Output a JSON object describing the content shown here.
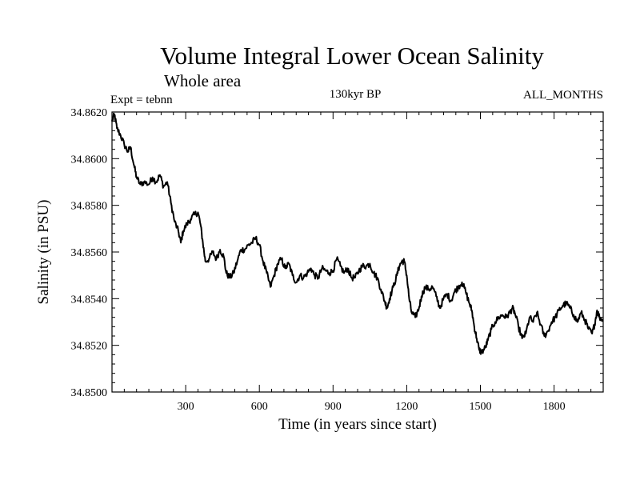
{
  "chart_data": {
    "type": "line",
    "title": "Volume Integral Lower Ocean Salinity",
    "subtitle": "Whole area",
    "expt_label": "Expt = tebnn",
    "period_label": "130kyr BP",
    "months_label": "ALL_MONTHS",
    "xlabel": "Time (in years since start)",
    "ylabel": "Salinity (in PSU)",
    "xlim": [
      0,
      2000
    ],
    "ylim": [
      34.85,
      34.862
    ],
    "x_ticks": [
      300,
      600,
      900,
      1200,
      1500,
      1800
    ],
    "x_tick_labels": [
      "300",
      "600",
      "900",
      "1200",
      "1500",
      "1800"
    ],
    "y_ticks": [
      34.85,
      34.852,
      34.854,
      34.856,
      34.858,
      34.86,
      34.862
    ],
    "y_tick_labels": [
      "34.8500",
      "34.8520",
      "34.8540",
      "34.8560",
      "34.8580",
      "34.8600",
      "34.8620"
    ],
    "series": [
      {
        "name": "salinity",
        "color": "#000000",
        "points": [
          [
            0,
            34.8616
          ],
          [
            10,
            34.8619
          ],
          [
            20,
            34.8613
          ],
          [
            35,
            34.861
          ],
          [
            50,
            34.8606
          ],
          [
            65,
            34.8603
          ],
          [
            75,
            34.8605
          ],
          [
            90,
            34.8597
          ],
          [
            100,
            34.8592
          ],
          [
            115,
            34.8589
          ],
          [
            130,
            34.859
          ],
          [
            150,
            34.8589
          ],
          [
            165,
            34.8592
          ],
          [
            180,
            34.859
          ],
          [
            195,
            34.8593
          ],
          [
            210,
            34.8588
          ],
          [
            225,
            34.859
          ],
          [
            240,
            34.8581
          ],
          [
            255,
            34.8573
          ],
          [
            270,
            34.8569
          ],
          [
            280,
            34.8564
          ],
          [
            290,
            34.8569
          ],
          [
            305,
            34.8572
          ],
          [
            320,
            34.8574
          ],
          [
            335,
            34.8576
          ],
          [
            350,
            34.8577
          ],
          [
            360,
            34.8572
          ],
          [
            370,
            34.8564
          ],
          [
            380,
            34.8556
          ],
          [
            395,
            34.8557
          ],
          [
            410,
            34.856
          ],
          [
            425,
            34.8557
          ],
          [
            440,
            34.8561
          ],
          [
            455,
            34.8558
          ],
          [
            465,
            34.8551
          ],
          [
            480,
            34.8549
          ],
          [
            495,
            34.8551
          ],
          [
            510,
            34.8556
          ],
          [
            525,
            34.8561
          ],
          [
            540,
            34.8561
          ],
          [
            555,
            34.8563
          ],
          [
            570,
            34.8564
          ],
          [
            585,
            34.8566
          ],
          [
            600,
            34.8563
          ],
          [
            615,
            34.8556
          ],
          [
            630,
            34.8551
          ],
          [
            645,
            34.8545
          ],
          [
            660,
            34.855
          ],
          [
            675,
            34.8555
          ],
          [
            690,
            34.8557
          ],
          [
            705,
            34.8553
          ],
          [
            720,
            34.8555
          ],
          [
            735,
            34.855
          ],
          [
            750,
            34.8547
          ],
          [
            765,
            34.855
          ],
          [
            780,
            34.8549
          ],
          [
            795,
            34.8551
          ],
          [
            810,
            34.8553
          ],
          [
            825,
            34.855
          ],
          [
            840,
            34.8549
          ],
          [
            855,
            34.8553
          ],
          [
            870,
            34.8552
          ],
          [
            885,
            34.8551
          ],
          [
            900,
            34.8552
          ],
          [
            915,
            34.8557
          ],
          [
            930,
            34.8554
          ],
          [
            945,
            34.8551
          ],
          [
            960,
            34.8553
          ],
          [
            975,
            34.8549
          ],
          [
            990,
            34.8549
          ],
          [
            1005,
            34.8552
          ],
          [
            1020,
            34.8554
          ],
          [
            1035,
            34.8554
          ],
          [
            1050,
            34.8555
          ],
          [
            1065,
            34.8551
          ],
          [
            1080,
            34.8549
          ],
          [
            1095,
            34.8544
          ],
          [
            1110,
            34.8539
          ],
          [
            1120,
            34.8536
          ],
          [
            1130,
            34.854
          ],
          [
            1145,
            34.8545
          ],
          [
            1160,
            34.855
          ],
          [
            1170,
            34.8554
          ],
          [
            1180,
            34.8556
          ],
          [
            1190,
            34.8556
          ],
          [
            1200,
            34.855
          ],
          [
            1210,
            34.854
          ],
          [
            1220,
            34.8534
          ],
          [
            1235,
            34.8532
          ],
          [
            1250,
            34.8536
          ],
          [
            1260,
            34.8541
          ],
          [
            1275,
            34.8545
          ],
          [
            1290,
            34.8544
          ],
          [
            1305,
            34.8545
          ],
          [
            1320,
            34.8541
          ],
          [
            1335,
            34.8536
          ],
          [
            1350,
            34.854
          ],
          [
            1365,
            34.8542
          ],
          [
            1380,
            34.8539
          ],
          [
            1395,
            34.8543
          ],
          [
            1410,
            34.8545
          ],
          [
            1425,
            34.8547
          ],
          [
            1440,
            34.8543
          ],
          [
            1455,
            34.8538
          ],
          [
            1465,
            34.8535
          ],
          [
            1475,
            34.8528
          ],
          [
            1485,
            34.8523
          ],
          [
            1495,
            34.8518
          ],
          [
            1505,
            34.8517
          ],
          [
            1520,
            34.8519
          ],
          [
            1530,
            34.8522
          ],
          [
            1545,
            34.8527
          ],
          [
            1560,
            34.853
          ],
          [
            1575,
            34.8532
          ],
          [
            1590,
            34.8533
          ],
          [
            1605,
            34.8532
          ],
          [
            1620,
            34.8534
          ],
          [
            1630,
            34.8536
          ],
          [
            1640,
            34.8534
          ],
          [
            1655,
            34.8528
          ],
          [
            1670,
            34.8523
          ],
          [
            1685,
            34.8525
          ],
          [
            1700,
            34.8532
          ],
          [
            1715,
            34.853
          ],
          [
            1730,
            34.8534
          ],
          [
            1745,
            34.8529
          ],
          [
            1760,
            34.8524
          ],
          [
            1775,
            34.8526
          ],
          [
            1790,
            34.853
          ],
          [
            1805,
            34.8532
          ],
          [
            1820,
            34.8535
          ],
          [
            1835,
            34.8537
          ],
          [
            1850,
            34.8538
          ],
          [
            1865,
            34.8536
          ],
          [
            1880,
            34.8533
          ],
          [
            1895,
            34.853
          ],
          [
            1910,
            34.8534
          ],
          [
            1925,
            34.8531
          ],
          [
            1940,
            34.8527
          ],
          [
            1955,
            34.8525
          ],
          [
            1965,
            34.8529
          ],
          [
            1975,
            34.8535
          ],
          [
            1985,
            34.8532
          ],
          [
            2000,
            34.8531
          ]
        ]
      }
    ]
  }
}
